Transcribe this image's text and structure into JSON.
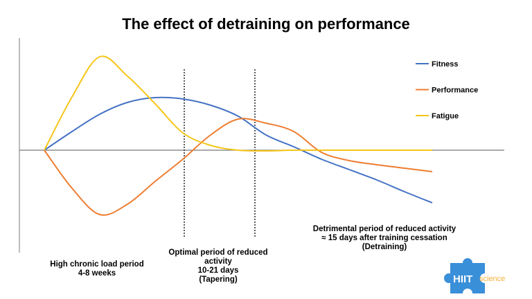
{
  "chart_data": {
    "type": "line",
    "title": "The effect of detraining on performance",
    "xlabel": "",
    "ylabel": "",
    "xlim": [
      -0.9,
      16.6
    ],
    "ylim": [
      -14.8,
      16.2
    ],
    "grid": false,
    "legend_placement": "top-right",
    "x": [
      0,
      1,
      2,
      3,
      4,
      5,
      6,
      7,
      8,
      9,
      10,
      11,
      12,
      13,
      14
    ],
    "series": [
      {
        "name": "Fitness",
        "color": "#4472C4",
        "values": [
          0,
          2.7,
          5.2,
          6.9,
          7.6,
          7.4,
          6.5,
          4.9,
          2.2,
          0.5,
          -1.3,
          -2.8,
          -4.3,
          -6.0,
          -7.6
        ]
      },
      {
        "name": "Performance",
        "color": "#ED7D31",
        "values": [
          0,
          -5.5,
          -9.3,
          -7.8,
          -4.5,
          -1.3,
          2.2,
          4.5,
          3.9,
          2.7,
          -0.3,
          -1.5,
          -2.1,
          -2.6,
          -3.1
        ]
      },
      {
        "name": "Fatigue",
        "color": "#F5C518",
        "values": [
          0,
          7.7,
          13.5,
          10.7,
          6.7,
          2.5,
          0.7,
          0,
          -0.1,
          0,
          0,
          0,
          0,
          0,
          0
        ]
      }
    ],
    "dividers": [
      5.05,
      7.6
    ],
    "annotations": {
      "phase1": [
        "High chronic load period",
        "4-8 weeks"
      ],
      "phase2": [
        "Optimal period of reduced",
        "activity",
        "10-21 days",
        "(Tapering)"
      ],
      "phase3": [
        "Detrimental period of reduced activity",
        "≈ 15 days after training cessation",
        "(Detraining)"
      ]
    }
  },
  "logo": {
    "text_main": "HIIT",
    "text_sub": "science",
    "puzzle_color": "#3A8FD9",
    "sub_color": "#F2B134"
  }
}
